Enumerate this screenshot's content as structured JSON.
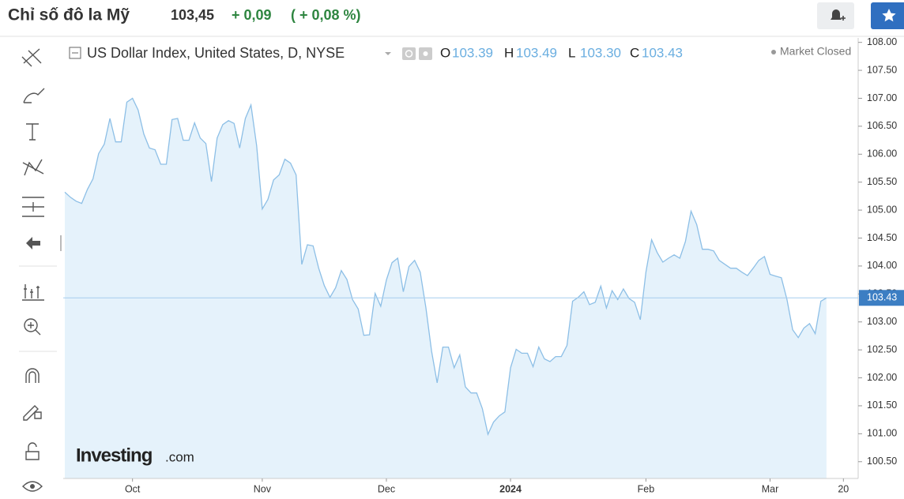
{
  "header": {
    "title": "Chỉ số đô la Mỹ",
    "price": "103,45",
    "change": "+ 0,09",
    "change_pct": "( + 0,08 %)"
  },
  "logo": {
    "brand": "Investing",
    "suffix": ".com"
  },
  "chart_data": {
    "type": "line",
    "title": "US Dollar Index, United States, D, NYSE",
    "status": "Market Closed",
    "ohlc": [
      {
        "key": "O",
        "value": "103.39"
      },
      {
        "key": "H",
        "value": "103.49"
      },
      {
        "key": "L",
        "value": "103.30"
      },
      {
        "key": "C",
        "value": "103.43"
      }
    ],
    "categories": [
      null,
      null,
      null,
      null,
      null,
      null,
      null,
      null,
      null,
      null,
      null,
      null,
      "Oct",
      null,
      null,
      null,
      null,
      null,
      null,
      null,
      null,
      null,
      null,
      null,
      null,
      null,
      null,
      null,
      null,
      null,
      null,
      null,
      null,
      null,
      null,
      "Nov",
      null,
      null,
      null,
      null,
      null,
      null,
      null,
      null,
      null,
      null,
      null,
      null,
      null,
      null,
      null,
      null,
      null,
      null,
      null,
      null,
      null,
      "Dec",
      null,
      null,
      null,
      null,
      null,
      null,
      null,
      null,
      null,
      null,
      null,
      null,
      null,
      null,
      null,
      null,
      null,
      null,
      null,
      null,
      null,
      "2024",
      null,
      null,
      null,
      null,
      null,
      null,
      null,
      null,
      null,
      null,
      null,
      null,
      null,
      null,
      null,
      null,
      null,
      null,
      null,
      null,
      null,
      null,
      null,
      "Feb",
      null,
      null,
      null,
      null,
      null,
      null,
      null,
      null,
      null,
      null,
      null,
      null,
      null,
      null,
      null,
      null,
      null,
      null,
      null,
      null,
      null,
      "Mar",
      null,
      null,
      null,
      null,
      null,
      null,
      null,
      null,
      null,
      null,
      null,
      null,
      "20"
    ],
    "values": [
      105.32,
      105.23,
      105.16,
      105.12,
      105.37,
      105.56,
      106.01,
      106.18,
      106.64,
      106.22,
      106.22,
      106.93,
      107.0,
      106.79,
      106.36,
      106.11,
      106.08,
      105.82,
      105.82,
      106.62,
      106.64,
      106.25,
      106.25,
      106.56,
      106.29,
      106.19,
      105.51,
      106.29,
      106.53,
      106.6,
      106.55,
      106.11,
      106.64,
      106.88,
      106.15,
      105.02,
      105.19,
      105.54,
      105.63,
      105.91,
      105.84,
      105.63,
      104.03,
      104.38,
      104.36,
      103.96,
      103.65,
      103.44,
      103.61,
      103.92,
      103.76,
      103.4,
      103.23,
      102.76,
      102.77,
      103.51,
      103.28,
      103.75,
      104.06,
      104.14,
      103.54,
      103.99,
      104.1,
      103.89,
      103.25,
      102.48,
      101.91,
      102.55,
      102.55,
      102.18,
      102.41,
      101.84,
      101.73,
      101.73,
      101.45,
      100.99,
      101.21,
      101.32,
      101.39,
      102.18,
      102.51,
      102.44,
      102.44,
      102.2,
      102.55,
      102.34,
      102.29,
      102.38,
      102.38,
      102.58,
      103.37,
      103.44,
      103.54,
      103.31,
      103.35,
      103.64,
      103.25,
      103.56,
      103.4,
      103.59,
      103.42,
      103.35,
      103.04,
      103.89,
      104.47,
      104.24,
      104.07,
      104.14,
      104.2,
      104.14,
      104.44,
      104.98,
      104.74,
      104.3,
      104.3,
      104.27,
      104.1,
      104.03,
      103.96,
      103.96,
      103.89,
      103.83,
      103.96,
      104.1,
      104.17,
      103.85,
      103.82,
      103.79,
      103.4,
      102.86,
      102.72,
      102.89,
      102.97,
      102.79,
      103.37,
      103.43,
      null,
      null,
      null
    ],
    "color": "#8dbfe6",
    "fill": "#e5f2fb",
    "ylim": [
      100.2,
      108.08
    ],
    "yticks": [
      {
        "value": 100.5,
        "label": "100.50"
      },
      {
        "value": 101,
        "label": "101.00"
      },
      {
        "value": 101.5,
        "label": "101.50"
      },
      {
        "value": 102,
        "label": "102.00"
      },
      {
        "value": 102.5,
        "label": "102.50"
      },
      {
        "value": 103,
        "label": "103.00"
      },
      {
        "value": 103.5,
        "label": "103.50"
      },
      {
        "value": 104,
        "label": "104.00"
      },
      {
        "value": 104.5,
        "label": "104.50"
      },
      {
        "value": 105,
        "label": "105.00"
      },
      {
        "value": 105.5,
        "label": "105.50"
      },
      {
        "value": 106,
        "label": "106.00"
      },
      {
        "value": 106.5,
        "label": "106.50"
      },
      {
        "value": 107,
        "label": "107.00"
      },
      {
        "value": 107.5,
        "label": "107.50"
      },
      {
        "value": 108,
        "label": "108.00"
      }
    ],
    "price_line": {
      "value": 103.43,
      "label": "103.43"
    },
    "price_color": "#3c7ec3"
  }
}
